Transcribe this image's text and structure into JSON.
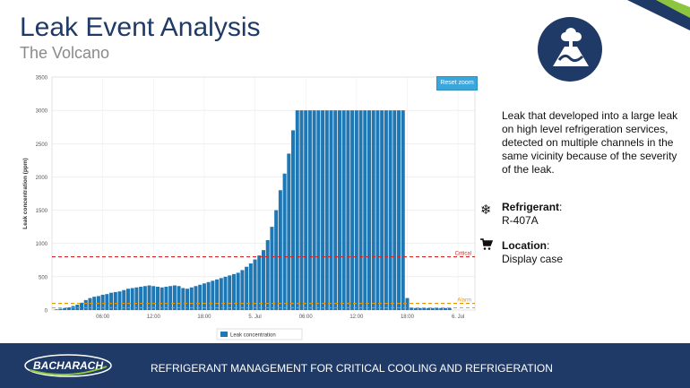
{
  "slide": {
    "title": "Leak Event Analysis",
    "subtitle": "The Volcano",
    "badge_icon": "volcano-icon",
    "description": "Leak that developed into a large leak on high level refrigeration services, detected on multiple channels in the same vicinity because of the severity of the leak.",
    "refrigerant_label": "Refrigerant",
    "refrigerant_colon": ":",
    "refrigerant_value": "R-407A",
    "refrigerant_icon": "snowflake-icon",
    "location_label": "Location",
    "location_colon": ":",
    "location_value": "Display case",
    "location_icon": "cart-icon",
    "footer_logo_text": "BACHARACH",
    "footer_text": "REFRIGERANT MANAGEMENT FOR CRITICAL COOLING AND REFRIGERATION",
    "reset_zoom_label": "Reset zoom",
    "colors": {
      "navy": "#1f3a66",
      "accent_green": "#8cc63f",
      "bar": "#1f78b4",
      "critical_line": "#d62728",
      "alarm_line": "#e69500"
    }
  },
  "chart_data": {
    "type": "bar",
    "ylabel": "Leak concentration (ppm)",
    "xlabel": "",
    "ylim": [
      0,
      3500
    ],
    "yticks": [
      "0",
      "500",
      "1000",
      "1500",
      "2000",
      "2500",
      "3000",
      "3500"
    ],
    "xticks": [
      {
        "label": "06:00",
        "t": 6
      },
      {
        "label": "12:00",
        "t": 12
      },
      {
        "label": "18:00",
        "t": 18
      },
      {
        "label": "5. Jul",
        "t": 24
      },
      {
        "label": "06:00",
        "t": 30
      },
      {
        "label": "12:00",
        "t": 36
      },
      {
        "label": "18:00",
        "t": 42
      },
      {
        "label": "6. Jul",
        "t": 48
      }
    ],
    "xrange_hours": [
      0,
      50
    ],
    "thresholds": [
      {
        "name": "Critical",
        "value": 800
      },
      {
        "name": "Alarm",
        "value": 100
      }
    ],
    "legend": [
      "Leak concentration"
    ],
    "legend_position": "bottom",
    "series": [
      {
        "name": "Leak concentration",
        "x_hours": [
          0.5,
          1,
          1.5,
          2,
          2.5,
          3,
          3.5,
          4,
          4.5,
          5,
          5.5,
          6,
          6.5,
          7,
          7.5,
          8,
          8.5,
          9,
          9.5,
          10,
          10.5,
          11,
          11.5,
          12,
          12.5,
          13,
          13.5,
          14,
          14.5,
          15,
          15.5,
          16,
          16.5,
          17,
          17.5,
          18,
          18.5,
          19,
          19.5,
          20,
          20.5,
          21,
          21.5,
          22,
          22.5,
          23,
          23.5,
          24,
          24.5,
          25,
          25.5,
          26,
          26.5,
          27,
          27.5,
          28,
          28.5,
          29,
          29.5,
          30,
          30.5,
          31,
          31.5,
          32,
          32.5,
          33,
          33.5,
          34,
          34.5,
          35,
          35.5,
          36,
          36.5,
          37,
          37.5,
          38,
          38.5,
          39,
          39.5,
          40,
          40.5,
          41,
          41.5,
          42,
          42.5,
          43,
          43.5,
          44,
          44.5,
          45,
          45.5,
          46,
          46.5,
          47
        ],
        "values": [
          10,
          20,
          30,
          40,
          60,
          80,
          110,
          150,
          180,
          200,
          210,
          230,
          240,
          260,
          270,
          280,
          300,
          320,
          330,
          340,
          350,
          360,
          370,
          360,
          350,
          340,
          350,
          360,
          370,
          360,
          330,
          320,
          340,
          360,
          380,
          400,
          420,
          440,
          460,
          480,
          500,
          520,
          540,
          560,
          600,
          650,
          700,
          760,
          820,
          900,
          1050,
          1250,
          1500,
          1800,
          2050,
          2350,
          2700,
          3000,
          3000,
          3000,
          3000,
          3000,
          3000,
          3000,
          3000,
          3000,
          3000,
          3000,
          3000,
          3000,
          3000,
          3000,
          3000,
          3000,
          3000,
          3000,
          3000,
          3000,
          3000,
          3000,
          3000,
          3000,
          3000,
          180,
          40,
          30,
          30,
          30,
          30,
          30,
          30,
          30,
          30,
          30
        ]
      }
    ]
  }
}
